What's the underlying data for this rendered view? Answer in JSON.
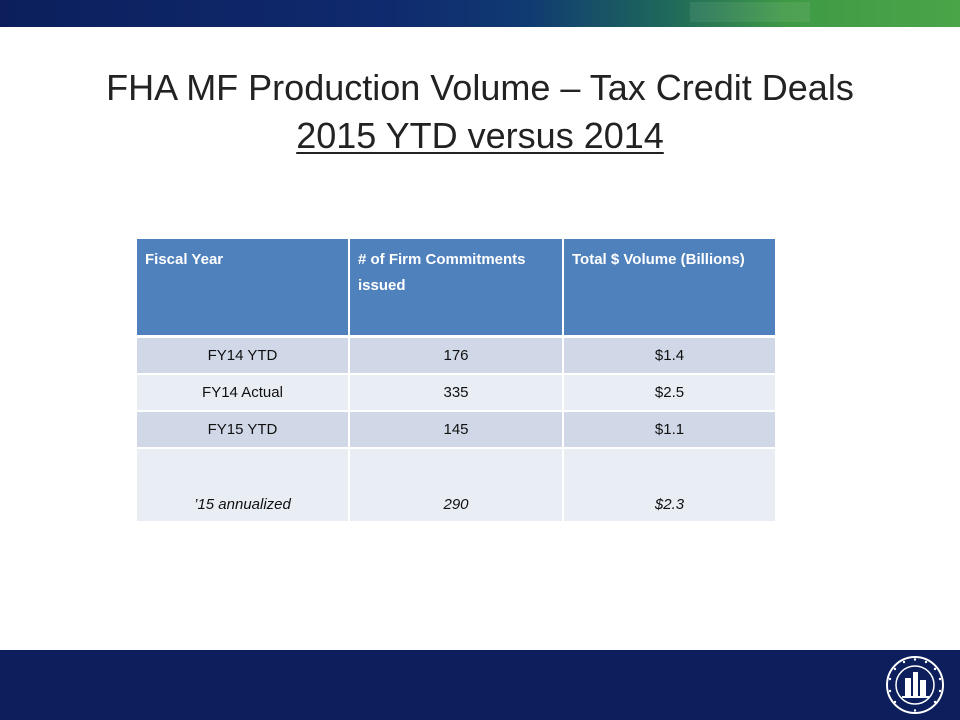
{
  "title": {
    "line1": "FHA MF Production Volume – Tax Credit Deals",
    "line2": "2015 YTD versus 2014"
  },
  "table": {
    "headers": [
      "Fiscal Year",
      "# of Firm Commitments issued",
      "Total $ Volume (Billions)"
    ],
    "rows": [
      [
        "FY14 YTD",
        "176",
        "$1.4"
      ],
      [
        "FY14 Actual",
        "335",
        "$2.5"
      ],
      [
        "FY15 YTD",
        "145",
        "$1.1"
      ],
      [
        "’15  annualized",
        "290",
        "$2.3"
      ]
    ]
  },
  "colors": {
    "header": "#4f81bd",
    "row_dark": "#d0d8e8",
    "row_light": "#e9edf4",
    "navy": "#0c1f5c",
    "green": "#4aa548"
  },
  "icons": {
    "seal": "hud-seal-icon"
  }
}
